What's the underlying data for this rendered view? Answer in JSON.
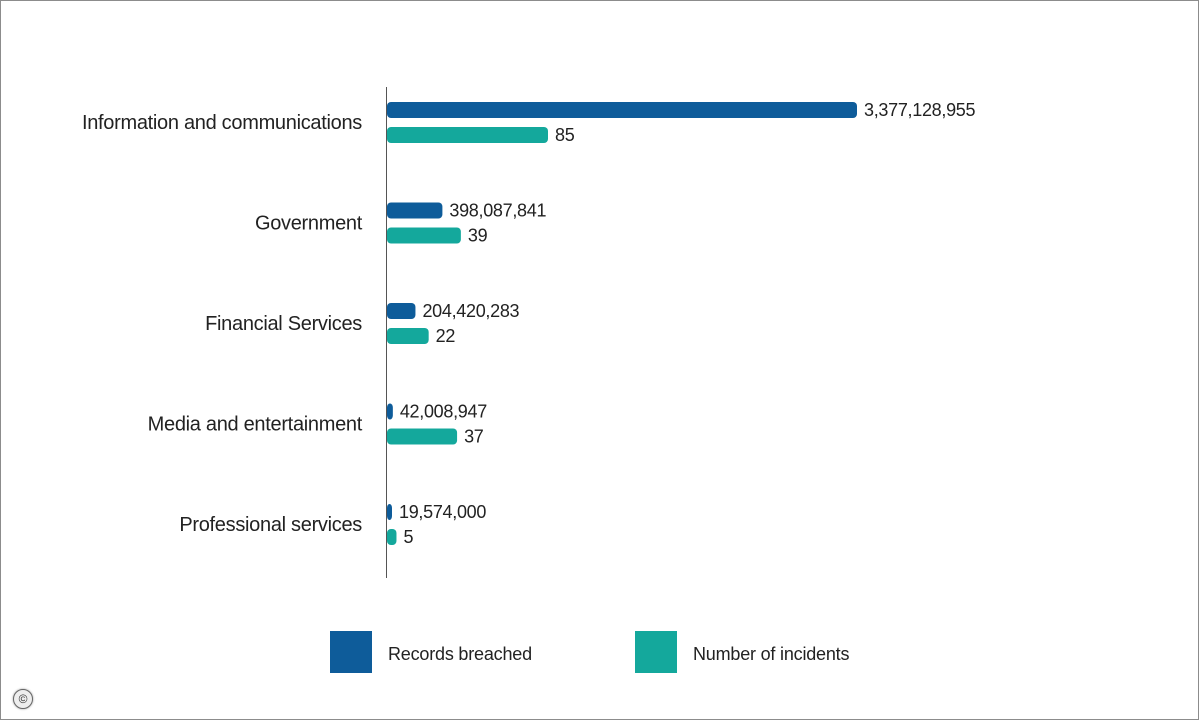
{
  "chart_data": {
    "type": "bar",
    "orientation": "horizontal",
    "categories": [
      "Information and communications",
      "Government",
      "Financial Services",
      "Media and entertainment",
      "Professional services"
    ],
    "series": [
      {
        "name": "Records breached",
        "color": "#0e5c9a",
        "values": [
          3377128955,
          398087841,
          204420283,
          42008947,
          19574000
        ],
        "labels": [
          "3,377,128,955",
          "398,087,841",
          "204,420,283",
          "42,008,947",
          "19,574,000"
        ]
      },
      {
        "name": "Number of incidents",
        "color": "#14a89c",
        "values": [
          85,
          39,
          22,
          37,
          5
        ],
        "labels": [
          "85",
          "39",
          "22",
          "37",
          "5"
        ]
      }
    ],
    "legend_position": "bottom",
    "grid": false
  },
  "icons": {
    "copyright": "copyright-icon"
  }
}
